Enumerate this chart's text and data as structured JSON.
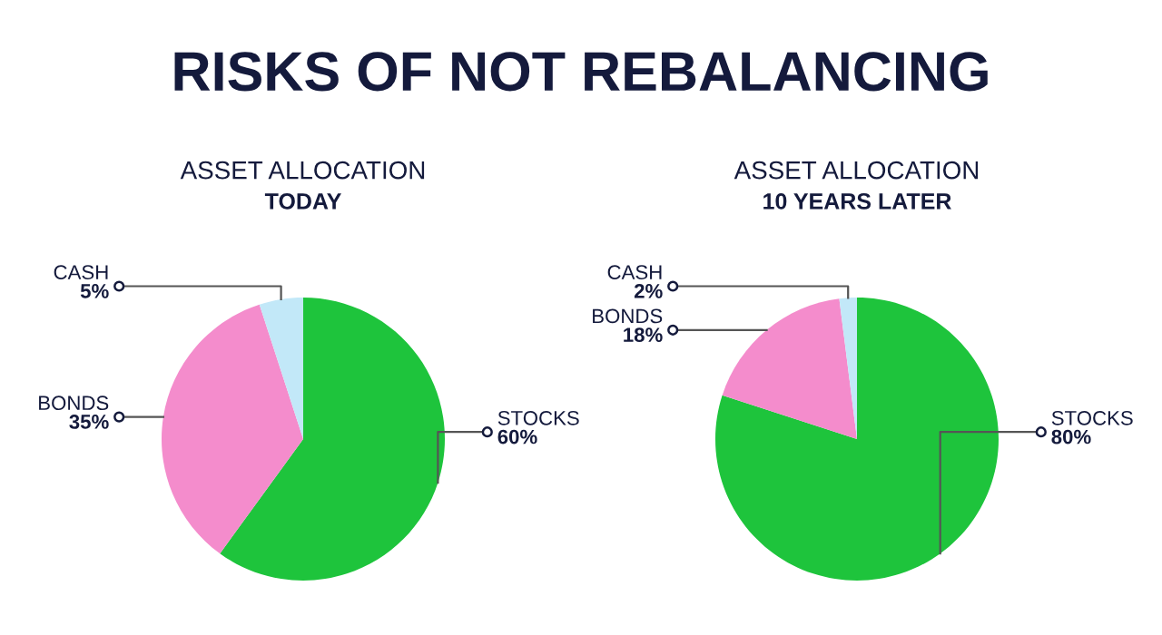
{
  "chart_data": [
    {
      "type": "pie",
      "title": "ASSET ALLOCATION",
      "subtitle": "TODAY",
      "annotations": [
        "RISKS OF NOT REBALANCING"
      ],
      "categories": [
        "STOCKS",
        "BONDS",
        "CASH"
      ],
      "values": [
        60,
        35,
        5
      ],
      "value_labels": [
        "60%",
        "35%",
        "5%"
      ],
      "colors": [
        "#1ec43c",
        "#f48ccc",
        "#c2e8f8"
      ],
      "legend": false
    },
    {
      "type": "pie",
      "title": "ASSET ALLOCATION",
      "subtitle": "10 YEARS LATER",
      "categories": [
        "STOCKS",
        "BONDS",
        "CASH"
      ],
      "values": [
        80,
        18,
        2
      ],
      "value_labels": [
        "80%",
        "18%",
        "2%"
      ],
      "colors": [
        "#1ec43c",
        "#f48ccc",
        "#c2e8f8"
      ],
      "legend": false
    }
  ]
}
